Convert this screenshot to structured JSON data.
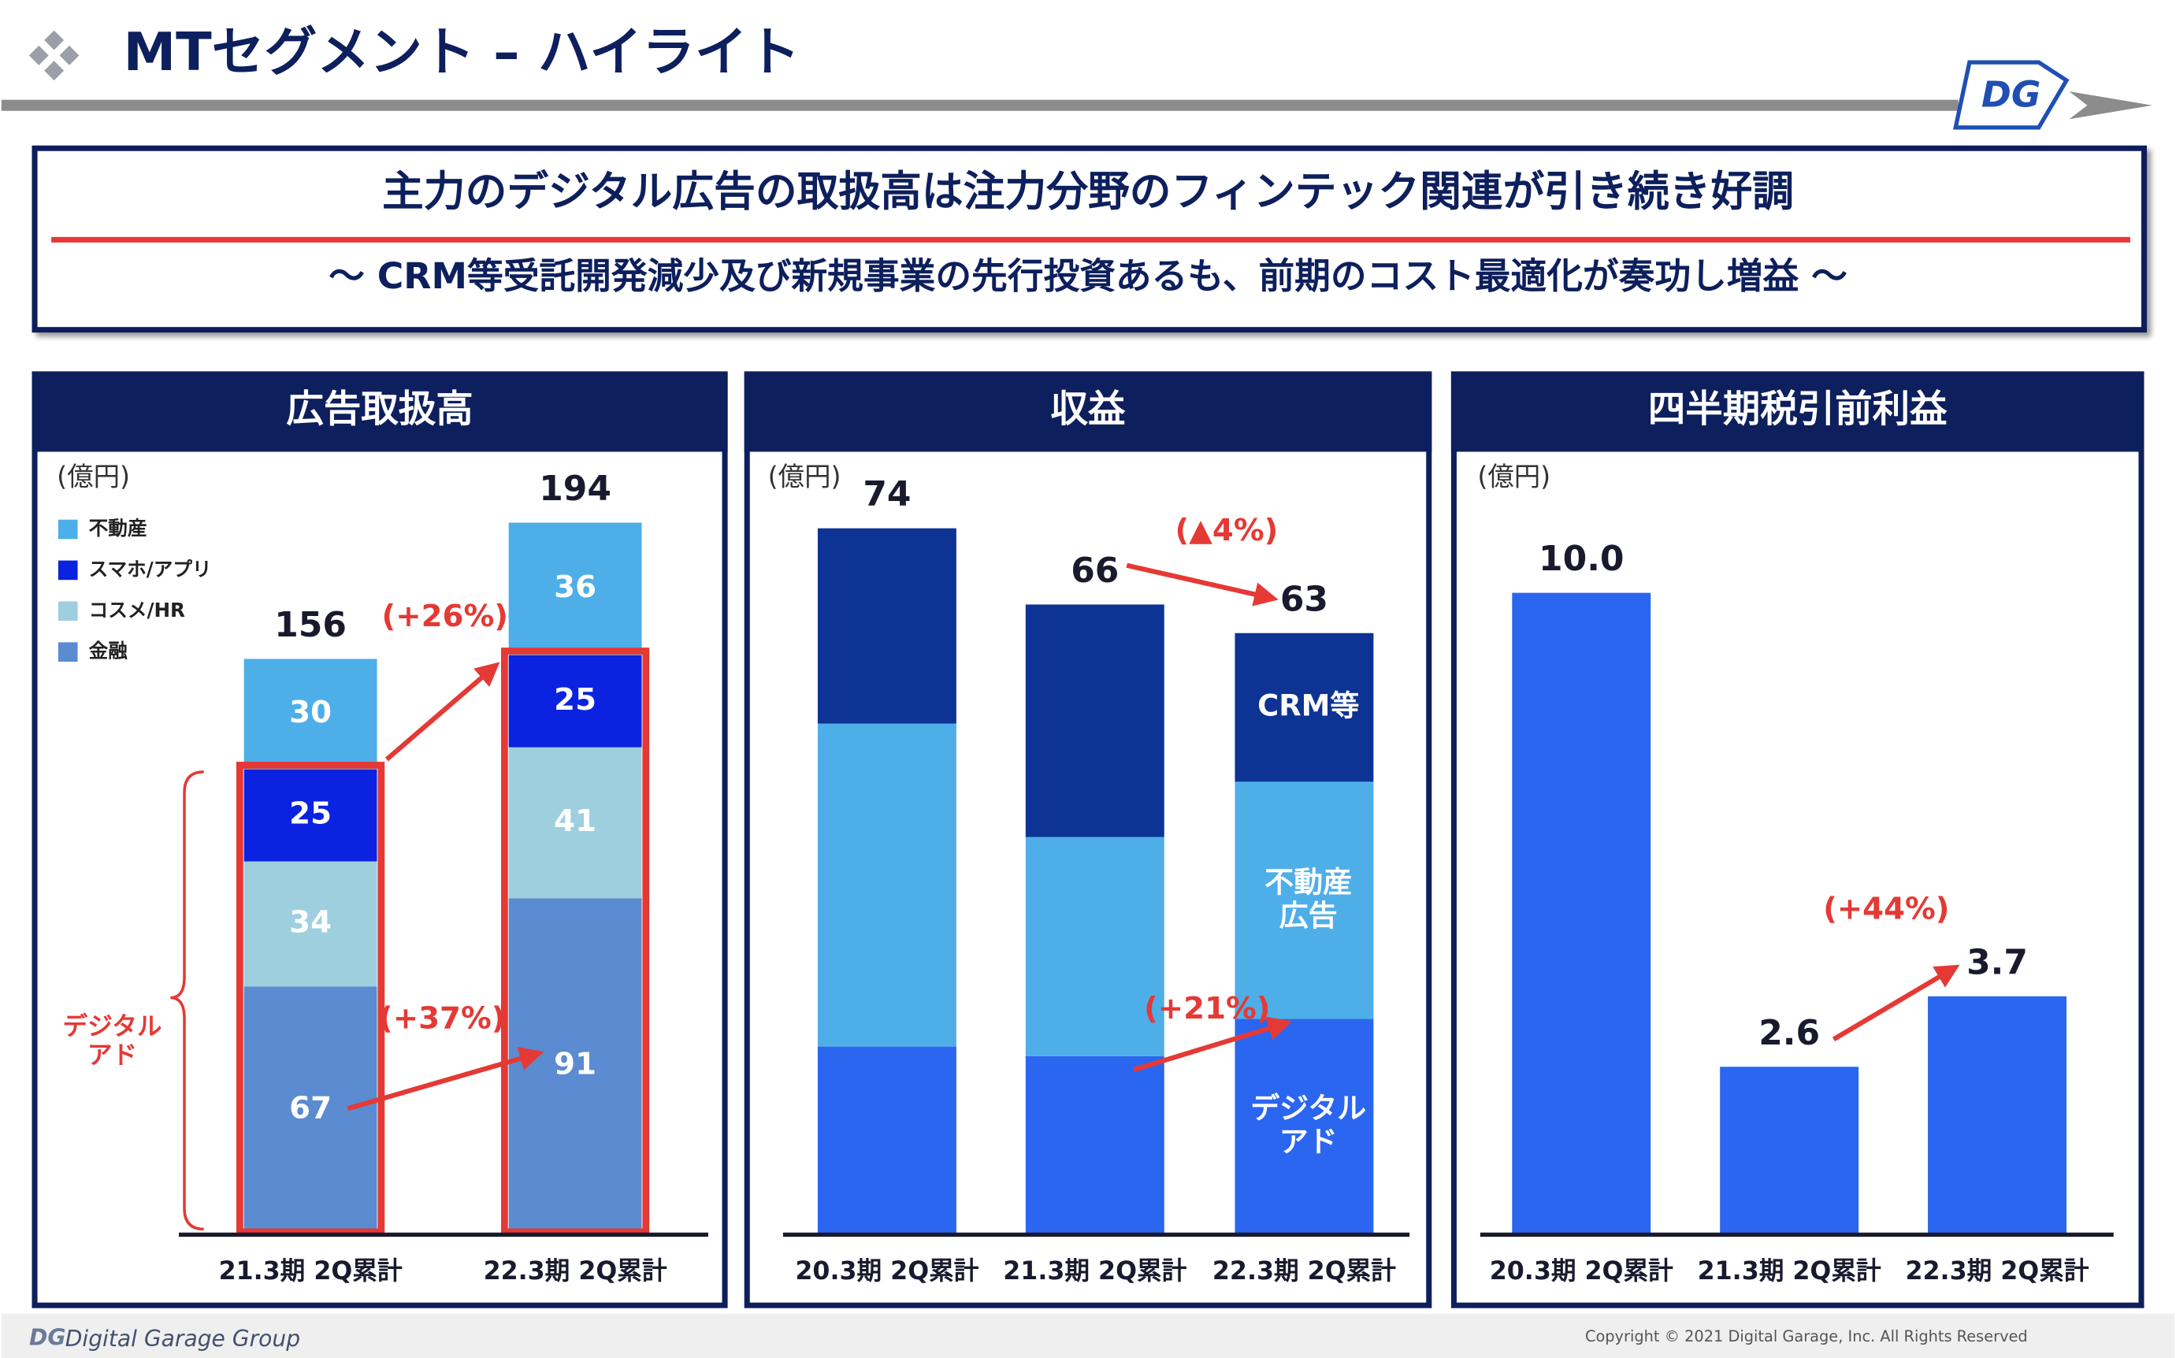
{
  "header": {
    "title": "MTセグメント – ハイライト"
  },
  "banner": {
    "headline": "主力のデジタル広告の取扱高は注力分野のフィンテック関連が引き続き好調",
    "subline": "〜 CRM等受託開発減少及び新規事業の先行投資あるも、前期のコスト最適化が奏功し増益 〜"
  },
  "chart_data": [
    {
      "type": "stacked_bar",
      "title": "広告取扱高",
      "unit": "(億円)",
      "categories": [
        "21.3期 2Q累計",
        "22.3期 2Q累計"
      ],
      "series": [
        {
          "name": "金融",
          "color": "#5b8bd0",
          "values": [
            67,
            91
          ]
        },
        {
          "name": "コスメ/HR",
          "color": "#9ecfdf",
          "values": [
            34,
            41
          ]
        },
        {
          "name": "スマホ/アプリ",
          "color": "#0b22e0",
          "values": [
            25,
            25
          ]
        },
        {
          "name": "不動産",
          "color": "#4eaee8",
          "values": [
            30,
            36
          ]
        }
      ],
      "totals": [
        156,
        194
      ],
      "ylim": [
        0,
        207
      ],
      "segment_labels": true,
      "legend": "upper left",
      "bracket_label": "デジタル\nアド",
      "annotations": [
        "(+26%)",
        "(+37%)"
      ]
    },
    {
      "type": "stacked_bar",
      "title": "収益",
      "unit": "(億円)",
      "categories": [
        "20.3期 2Q累計",
        "21.3期 2Q累計",
        "22.3期 2Q累計"
      ],
      "series": [
        {
          "name": "デジタル\nアド",
          "color": "#2a66f0",
          "values": [
            19.6,
            18.6,
            22.5
          ]
        },
        {
          "name": "不動産\n広告",
          "color": "#4eaee8",
          "values": [
            33.9,
            23.0,
            24.9
          ]
        },
        {
          "name": "CRM等",
          "color": "#0d3394",
          "values": [
            20.5,
            24.4,
            15.6
          ]
        }
      ],
      "totals": [
        74,
        66,
        63
      ],
      "ylim": [
        0,
        80
      ],
      "segment_labels": false,
      "annotations": [
        "(▲4%)",
        "(+21%)"
      ]
    },
    {
      "type": "bar",
      "title": "四半期税引前利益",
      "unit": "(億円)",
      "categories": [
        "20.3期 2Q累計",
        "21.3期 2Q累計",
        "22.3期 2Q累計"
      ],
      "values": [
        10.0,
        2.6,
        3.7
      ],
      "value_labels": [
        "10.0",
        "2.6",
        "3.7"
      ],
      "color": "#2a66f0",
      "ylim": [
        0,
        11.9
      ],
      "annotations": [
        "(+44%)"
      ]
    }
  ],
  "footer": {
    "company": "Digital Garage Group",
    "copyright": "Copyright © 2021 Digital Garage, Inc. All Rights Reserved"
  }
}
